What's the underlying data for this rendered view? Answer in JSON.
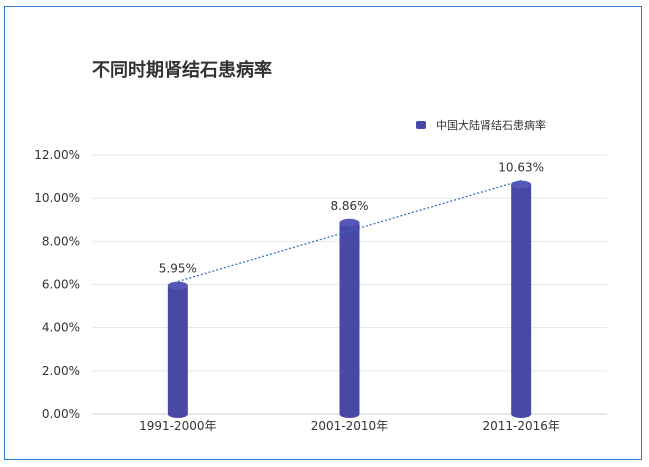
{
  "chart_data": {
    "type": "bar",
    "title": "不同时期肾结石患病率",
    "categories": [
      "1991-2000年",
      "2001-2010年",
      "2011-2016年"
    ],
    "series": [
      {
        "name": "中国大陆肾结石患病率",
        "values": [
          5.95,
          8.86,
          10.63
        ],
        "labels": [
          "5.95%",
          "8.86%",
          "10.63%"
        ],
        "color": "#4848a6"
      }
    ],
    "ylim": [
      0,
      12
    ],
    "yticks": [
      0,
      2,
      4,
      6,
      8,
      10,
      12
    ],
    "ytick_labels": [
      "0.00%",
      "2.00%",
      "4.00%",
      "6.00%",
      "8.00%",
      "10.00%",
      "12.00%"
    ],
    "trendline": {
      "type": "linear",
      "style": "dotted",
      "color": "#3a6fc0"
    },
    "grid": true,
    "legend_position": "top-right",
    "xlabel": "",
    "ylabel": ""
  }
}
